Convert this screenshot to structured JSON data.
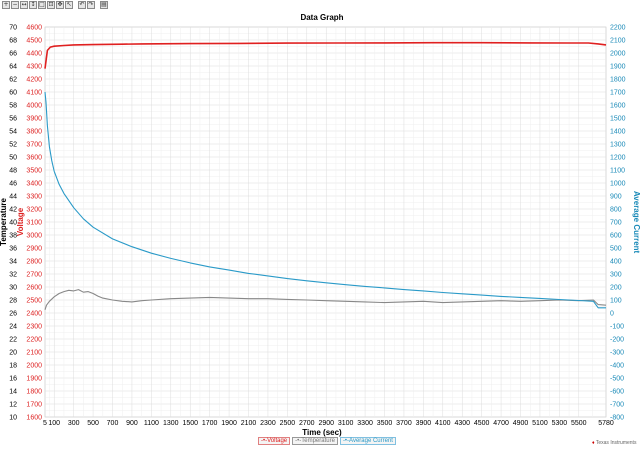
{
  "toolbar": {
    "buttons": [
      {
        "icon": "zoom-in-icon",
        "glyph": "+"
      },
      {
        "icon": "zoom-out-icon",
        "glyph": "−"
      },
      {
        "icon": "zoom-x-icon",
        "glyph": "↔"
      },
      {
        "icon": "zoom-y-icon",
        "glyph": "↕"
      },
      {
        "icon": "zoom-box-icon",
        "glyph": "□"
      },
      {
        "icon": "zoom-fit-icon",
        "glyph": "⊡"
      },
      {
        "icon": "pan-icon",
        "glyph": "✥"
      },
      {
        "icon": "select-icon",
        "glyph": "↖"
      },
      {
        "icon": "undo-icon",
        "glyph": "↶"
      },
      {
        "icon": "redo-icon",
        "glyph": "↷"
      },
      {
        "icon": "print-icon",
        "glyph": "▤"
      }
    ]
  },
  "footer": {
    "brand": "Texas Instruments"
  },
  "chart_data": {
    "type": "line",
    "title": "Data Graph",
    "xlabel": "Time (sec)",
    "x_ticks": [
      5,
      100,
      300,
      500,
      700,
      900,
      1100,
      1300,
      1500,
      1700,
      1900,
      2100,
      2300,
      2500,
      2700,
      2900,
      3100,
      3300,
      3500,
      3700,
      3900,
      4100,
      4300,
      4500,
      4700,
      4900,
      5100,
      5300,
      5500,
      5780
    ],
    "xlim": [
      5,
      5780
    ],
    "grid": true,
    "legend_position": "bottom-center",
    "axes": {
      "temperature": {
        "label": "Temperature",
        "range": [
          10,
          70
        ],
        "step": 2,
        "color": "#222222"
      },
      "voltage": {
        "label": "Voltage",
        "range": [
          1600,
          4600
        ],
        "step": 100,
        "color": "#dd2222"
      },
      "current": {
        "label": "Average Current",
        "range": [
          -800,
          2200
        ],
        "step": 100,
        "color": "#1a8ab8"
      }
    },
    "series": [
      {
        "name": "Voltage",
        "axis": "voltage",
        "color": "#e02020",
        "x": [
          5,
          30,
          60,
          100,
          200,
          300,
          500,
          800,
          1000,
          1500,
          2000,
          2500,
          3000,
          3500,
          4000,
          4500,
          5000,
          5400,
          5600,
          5700,
          5780
        ],
        "y": [
          4280,
          4420,
          4445,
          4452,
          4458,
          4462,
          4465,
          4468,
          4470,
          4472,
          4474,
          4476,
          4477,
          4478,
          4479,
          4479,
          4478,
          4477,
          4477,
          4470,
          4462
        ]
      },
      {
        "name": "Temperature",
        "axis": "temperature",
        "color": "#888888",
        "x": [
          5,
          20,
          50,
          100,
          150,
          200,
          250,
          300,
          350,
          400,
          450,
          500,
          550,
          600,
          700,
          800,
          900,
          1000,
          1100,
          1300,
          1500,
          1700,
          1900,
          2100,
          2300,
          2500,
          2700,
          2900,
          3100,
          3300,
          3500,
          3700,
          3900,
          4100,
          4300,
          4500,
          4700,
          4900,
          5100,
          5300,
          5500,
          5650,
          5700,
          5780
        ],
        "y": [
          26.5,
          27.2,
          27.8,
          28.5,
          29.0,
          29.3,
          29.5,
          29.4,
          29.6,
          29.2,
          29.3,
          29.0,
          28.6,
          28.3,
          28.0,
          27.8,
          27.7,
          27.9,
          28.0,
          28.2,
          28.3,
          28.4,
          28.3,
          28.2,
          28.2,
          28.1,
          28.0,
          27.9,
          27.8,
          27.7,
          27.6,
          27.7,
          27.8,
          27.6,
          27.7,
          27.8,
          27.9,
          27.8,
          27.9,
          28.0,
          27.9,
          28.0,
          27.3,
          27.2
        ]
      },
      {
        "name": "Average Current",
        "axis": "current",
        "color": "#2a9ac8",
        "x": [
          5,
          15,
          30,
          50,
          75,
          100,
          150,
          200,
          300,
          400,
          500,
          700,
          900,
          1100,
          1300,
          1500,
          1700,
          1900,
          2100,
          2300,
          2500,
          2700,
          2900,
          3100,
          3300,
          3500,
          3700,
          3900,
          4100,
          4300,
          4500,
          4700,
          4900,
          5100,
          5300,
          5500,
          5650,
          5700,
          5780
        ],
        "y": [
          1700,
          1620,
          1440,
          1280,
          1170,
          1090,
          990,
          920,
          810,
          725,
          660,
          570,
          510,
          460,
          420,
          385,
          355,
          330,
          305,
          285,
          265,
          248,
          232,
          218,
          205,
          193,
          180,
          170,
          158,
          148,
          138,
          128,
          120,
          112,
          104,
          96,
          90,
          40,
          40
        ]
      }
    ]
  }
}
